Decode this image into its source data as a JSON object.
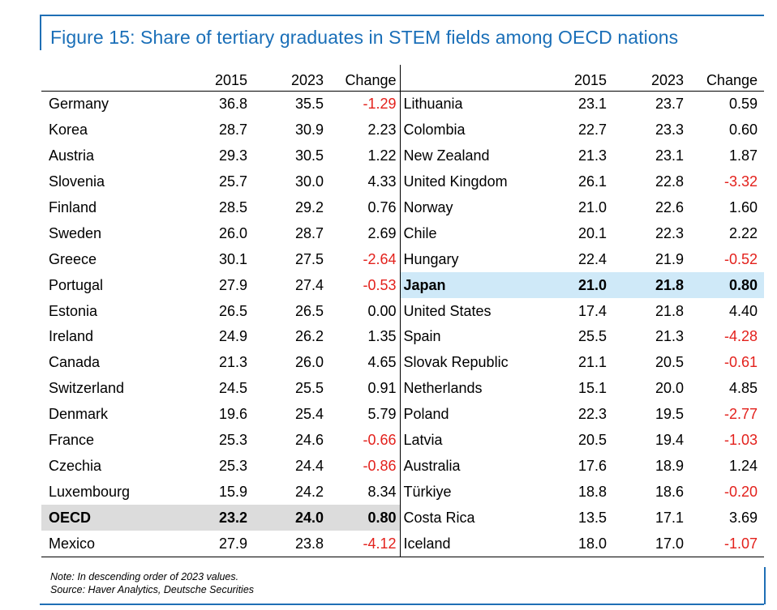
{
  "title": "Figure 15: Share of tertiary graduates in STEM fields among OECD nations",
  "headers": {
    "year1": "2015",
    "year2": "2023",
    "change": "Change"
  },
  "left_rows": [
    {
      "country": "Germany",
      "y2015": "36.8",
      "y2023": "35.5",
      "change": "-1.29"
    },
    {
      "country": "Korea",
      "y2015": "28.7",
      "y2023": "30.9",
      "change": "2.23"
    },
    {
      "country": "Austria",
      "y2015": "29.3",
      "y2023": "30.5",
      "change": "1.22"
    },
    {
      "country": "Slovenia",
      "y2015": "25.7",
      "y2023": "30.0",
      "change": "4.33"
    },
    {
      "country": "Finland",
      "y2015": "28.5",
      "y2023": "29.2",
      "change": "0.76"
    },
    {
      "country": "Sweden",
      "y2015": "26.0",
      "y2023": "28.7",
      "change": "2.69"
    },
    {
      "country": "Greece",
      "y2015": "30.1",
      "y2023": "27.5",
      "change": "-2.64"
    },
    {
      "country": "Portugal",
      "y2015": "27.9",
      "y2023": "27.4",
      "change": "-0.53"
    },
    {
      "country": "Estonia",
      "y2015": "26.5",
      "y2023": "26.5",
      "change": "0.00"
    },
    {
      "country": "Ireland",
      "y2015": "24.9",
      "y2023": "26.2",
      "change": "1.35"
    },
    {
      "country": "Canada",
      "y2015": "21.3",
      "y2023": "26.0",
      "change": "4.65"
    },
    {
      "country": "Switzerland",
      "y2015": "24.5",
      "y2023": "25.5",
      "change": "0.91"
    },
    {
      "country": "Denmark",
      "y2015": "19.6",
      "y2023": "25.4",
      "change": "5.79"
    },
    {
      "country": "France",
      "y2015": "25.3",
      "y2023": "24.6",
      "change": "-0.66"
    },
    {
      "country": "Czechia",
      "y2015": "25.3",
      "y2023": "24.4",
      "change": "-0.86"
    },
    {
      "country": "Luxembourg",
      "y2015": "15.9",
      "y2023": "24.2",
      "change": "8.34"
    },
    {
      "country": "OECD",
      "y2015": "23.2",
      "y2023": "24.0",
      "change": "0.80"
    },
    {
      "country": "Mexico",
      "y2015": "27.9",
      "y2023": "23.8",
      "change": "-4.12"
    }
  ],
  "right_rows": [
    {
      "country": "Lithuania",
      "y2015": "23.1",
      "y2023": "23.7",
      "change": "0.59"
    },
    {
      "country": "Colombia",
      "y2015": "22.7",
      "y2023": "23.3",
      "change": "0.60"
    },
    {
      "country": "New Zealand",
      "y2015": "21.3",
      "y2023": "23.1",
      "change": "1.87"
    },
    {
      "country": "United Kingdom",
      "y2015": "26.1",
      "y2023": "22.8",
      "change": "-3.32"
    },
    {
      "country": "Norway",
      "y2015": "21.0",
      "y2023": "22.6",
      "change": "1.60"
    },
    {
      "country": "Chile",
      "y2015": "20.1",
      "y2023": "22.3",
      "change": "2.22"
    },
    {
      "country": "Hungary",
      "y2015": "22.4",
      "y2023": "21.9",
      "change": "-0.52"
    },
    {
      "country": "Japan",
      "y2015": "21.0",
      "y2023": "21.8",
      "change": "0.80"
    },
    {
      "country": "United States",
      "y2015": "17.4",
      "y2023": "21.8",
      "change": "4.40"
    },
    {
      "country": "Spain",
      "y2015": "25.5",
      "y2023": "21.3",
      "change": "-4.28"
    },
    {
      "country": "Slovak Republic",
      "y2015": "21.1",
      "y2023": "20.5",
      "change": "-0.61"
    },
    {
      "country": "Netherlands",
      "y2015": "15.1",
      "y2023": "20.0",
      "change": "4.85"
    },
    {
      "country": "Poland",
      "y2015": "22.3",
      "y2023": "19.5",
      "change": "-2.77"
    },
    {
      "country": "Latvia",
      "y2015": "20.5",
      "y2023": "19.4",
      "change": "-1.03"
    },
    {
      "country": "Australia",
      "y2015": "17.6",
      "y2023": "18.9",
      "change": "1.24"
    },
    {
      "country": "Türkiye",
      "y2015": "18.8",
      "y2023": "18.6",
      "change": "-0.20"
    },
    {
      "country": "Costa Rica",
      "y2015": "13.5",
      "y2023": "17.1",
      "change": "3.69"
    },
    {
      "country": "Iceland",
      "y2015": "18.0",
      "y2023": "17.0",
      "change": "-1.07"
    }
  ],
  "colors": {
    "title": "#1a6fb8",
    "negative": "#e3211c",
    "oecd_highlight": "#dcdcdc",
    "japan_highlight": "#cfe9f8"
  },
  "note": "Note: In descending order of 2023 values.",
  "source": "Source: Haver Analytics, Deutsche Securities",
  "chart_data": {
    "type": "table",
    "title": "Figure 15: Share of tertiary graduates in STEM fields among OECD nations",
    "columns": [
      "",
      "2015",
      "2023",
      "Change"
    ],
    "rows": [
      [
        "Germany",
        36.8,
        35.5,
        -1.29
      ],
      [
        "Korea",
        28.7,
        30.9,
        2.23
      ],
      [
        "Austria",
        29.3,
        30.5,
        1.22
      ],
      [
        "Slovenia",
        25.7,
        30.0,
        4.33
      ],
      [
        "Finland",
        28.5,
        29.2,
        0.76
      ],
      [
        "Sweden",
        26.0,
        28.7,
        2.69
      ],
      [
        "Greece",
        30.1,
        27.5,
        -2.64
      ],
      [
        "Portugal",
        27.9,
        27.4,
        -0.53
      ],
      [
        "Estonia",
        26.5,
        26.5,
        0.0
      ],
      [
        "Ireland",
        24.9,
        26.2,
        1.35
      ],
      [
        "Canada",
        21.3,
        26.0,
        4.65
      ],
      [
        "Switzerland",
        24.5,
        25.5,
        0.91
      ],
      [
        "Denmark",
        19.6,
        25.4,
        5.79
      ],
      [
        "France",
        25.3,
        24.6,
        -0.66
      ],
      [
        "Czechia",
        25.3,
        24.4,
        -0.86
      ],
      [
        "Luxembourg",
        15.9,
        24.2,
        8.34
      ],
      [
        "OECD",
        23.2,
        24.0,
        0.8
      ],
      [
        "Mexico",
        27.9,
        23.8,
        -4.12
      ],
      [
        "Lithuania",
        23.1,
        23.7,
        0.59
      ],
      [
        "Colombia",
        22.7,
        23.3,
        0.6
      ],
      [
        "New Zealand",
        21.3,
        23.1,
        1.87
      ],
      [
        "United Kingdom",
        26.1,
        22.8,
        -3.32
      ],
      [
        "Norway",
        21.0,
        22.6,
        1.6
      ],
      [
        "Chile",
        20.1,
        22.3,
        2.22
      ],
      [
        "Hungary",
        22.4,
        21.9,
        -0.52
      ],
      [
        "Japan",
        21.0,
        21.8,
        0.8
      ],
      [
        "United States",
        17.4,
        21.8,
        4.4
      ],
      [
        "Spain",
        25.5,
        21.3,
        -4.28
      ],
      [
        "Slovak Republic",
        21.1,
        20.5,
        -0.61
      ],
      [
        "Netherlands",
        15.1,
        20.0,
        4.85
      ],
      [
        "Poland",
        22.3,
        19.5,
        -2.77
      ],
      [
        "Latvia",
        20.5,
        19.4,
        -1.03
      ],
      [
        "Australia",
        17.6,
        18.9,
        1.24
      ],
      [
        "Türkiye",
        18.8,
        18.6,
        -0.2
      ],
      [
        "Costa Rica",
        13.5,
        17.1,
        3.69
      ],
      [
        "Iceland",
        18.0,
        17.0,
        -1.07
      ]
    ]
  }
}
